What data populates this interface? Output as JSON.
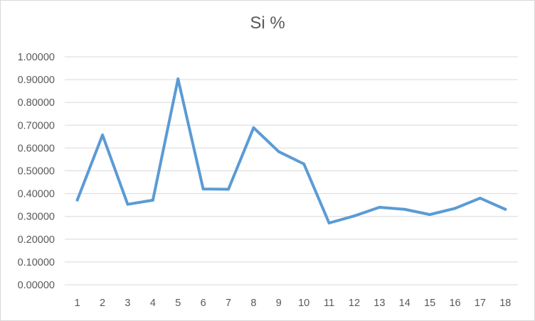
{
  "chart_data": {
    "type": "line",
    "title": "Si %",
    "xlabel": "",
    "ylabel": "",
    "categories": [
      "1",
      "2",
      "3",
      "4",
      "5",
      "6",
      "7",
      "8",
      "9",
      "10",
      "11",
      "12",
      "13",
      "14",
      "15",
      "16",
      "17",
      "18"
    ],
    "series": [
      {
        "values": [
          0.372,
          0.657,
          0.353,
          0.371,
          0.903,
          0.42,
          0.419,
          0.689,
          0.584,
          0.53,
          0.271,
          0.302,
          0.34,
          0.331,
          0.308,
          0.335,
          0.38,
          0.331
        ]
      }
    ],
    "ylim": [
      0,
      1.0
    ],
    "ytick_step": 0.1,
    "ytick_labels": [
      "0.00000",
      "0.10000",
      "0.20000",
      "0.30000",
      "0.40000",
      "0.50000",
      "0.60000",
      "0.70000",
      "0.80000",
      "0.90000",
      "1.00000"
    ],
    "grid": true,
    "legend": "none",
    "colors": {
      "line": "#5b9bd5",
      "grid": "#d9d9d9",
      "text": "#595959"
    }
  }
}
